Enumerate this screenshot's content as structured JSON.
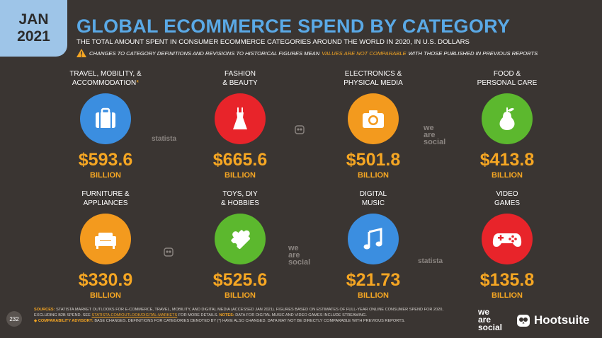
{
  "header": {
    "month": "JAN",
    "year": "2021",
    "title": "GLOBAL ECOMMERCE SPEND BY CATEGORY",
    "subtitle": "THE TOTAL AMOUNT SPENT IN CONSUMER ECOMMERCE CATEGORIES AROUND THE WORLD IN 2020, IN U.S. DOLLARS",
    "warning_pre": "CHANGES TO CATEGORY DEFINITIONS AND REVISIONS TO HISTORICAL FIGURES MEAN",
    "warning_highlight": "VALUES ARE NOT COMPARABLE",
    "warning_post": "WITH THOSE PUBLISHED IN PREVIOUS REPORTS"
  },
  "categories": [
    {
      "label1": "TRAVEL, MOBILITY, &",
      "label2": "ACCOMMODATION",
      "asterisk": "*",
      "value": "$593.6",
      "unit": "BILLION",
      "icon": "suitcase-icon",
      "color": "#3b8ee0"
    },
    {
      "label1": "FASHION",
      "label2": "& BEAUTY",
      "asterisk": "",
      "value": "$665.6",
      "unit": "BILLION",
      "icon": "dress-icon",
      "color": "#e8242a"
    },
    {
      "label1": "ELECTRONICS &",
      "label2": "PHYSICAL MEDIA",
      "asterisk": "",
      "value": "$501.8",
      "unit": "BILLION",
      "icon": "camera-icon",
      "color": "#f39a1e"
    },
    {
      "label1": "FOOD &",
      "label2": "PERSONAL CARE",
      "asterisk": "",
      "value": "$413.8",
      "unit": "BILLION",
      "icon": "pear-icon",
      "color": "#5cb82e"
    },
    {
      "label1": "FURNITURE &",
      "label2": "APPLIANCES",
      "asterisk": "",
      "value": "$330.9",
      "unit": "BILLION",
      "icon": "sofa-icon",
      "color": "#f39a1e"
    },
    {
      "label1": "TOYS, DIY",
      "label2": "& HOBBIES",
      "asterisk": "",
      "value": "$525.6",
      "unit": "BILLION",
      "icon": "puzzle-icon",
      "color": "#5cb82e"
    },
    {
      "label1": "DIGITAL",
      "label2": "MUSIC",
      "asterisk": "",
      "value": "$21.73",
      "unit": "BILLION",
      "icon": "music-note-icon",
      "color": "#3b8ee0"
    },
    {
      "label1": "VIDEO",
      "label2": "GAMES",
      "asterisk": "",
      "value": "$135.8",
      "unit": "BILLION",
      "icon": "gamepad-icon",
      "color": "#e8242a"
    }
  ],
  "watermarks": {
    "statista": "statista",
    "we": "we",
    "are": "are",
    "social": "social"
  },
  "footer": {
    "page": "232",
    "sources_label": "SOURCES:",
    "sources_text": "STATISTA MARKET OUTLOOKS FOR E-COMMERCE, TRAVEL, MOBILITY, AND DIGITAL MEDIA (ACCESSED JAN 2021). FIGURES BASED ON ESTIMATES OF FULL-YEAR ONLINE CONSUMER SPEND FOR 2020, EXCLUDING B2B SPEND. SEE",
    "link": "STATISTA.COM/OUTLOOK/DIGITAL-MARKETS",
    "sources_text2": "FOR MORE DETAILS.",
    "notes_label": "NOTES:",
    "notes_text": "DATA FOR DIGITAL MUSIC AND VIDEO GAMES INCLUDE STREAMING.",
    "advisory_label": "COMPARABILITY ADVISORY:",
    "advisory_text": "BASE CHANGES. DEFINITIONS FOR CATEGORIES DENOTED BY (*) HAVE ALSO CHANGED. DATA MAY NOT BE DIRECTLY COMPARABLE WITH PREVIOUS REPORTS.",
    "brand_hootsuite": "Hootsuite"
  }
}
